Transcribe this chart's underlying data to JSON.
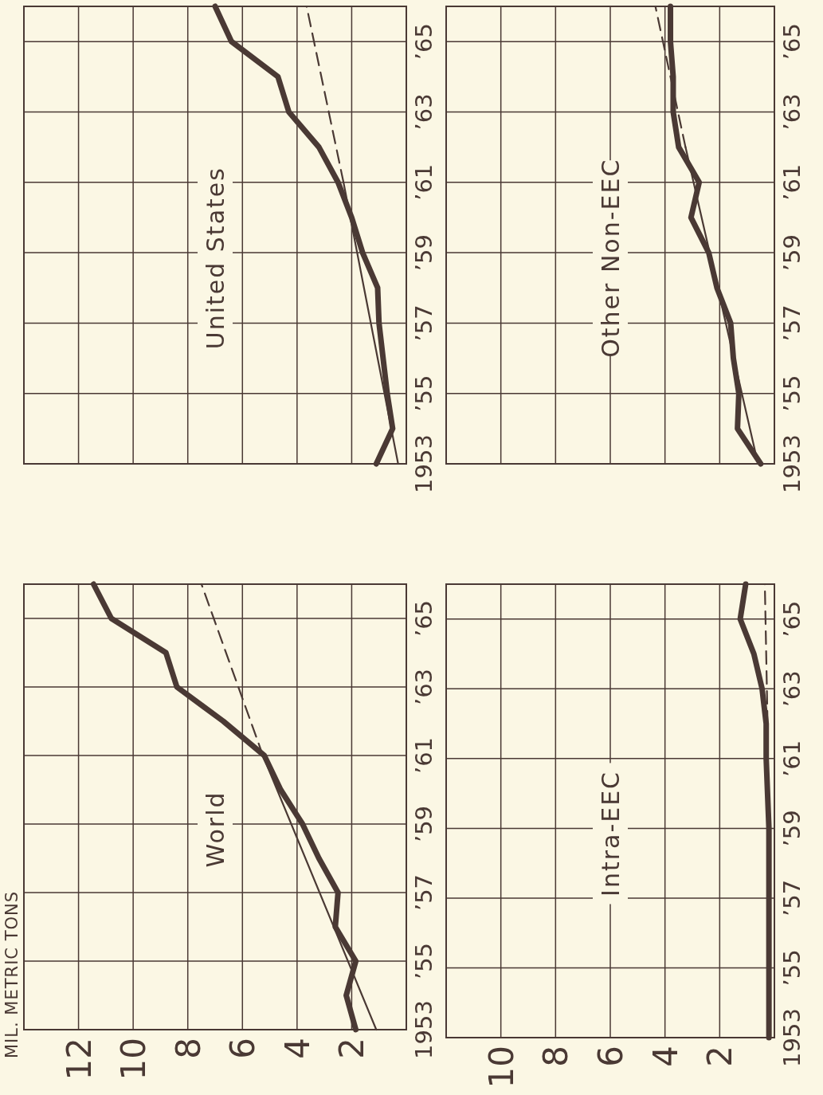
{
  "chart_data": [
    {
      "type": "line",
      "title": "World",
      "annotations": [
        "MIL. METRIC TONS"
      ],
      "xlim": [
        14,
        0
      ],
      "xticks": [
        12,
        10,
        8,
        6,
        4,
        2
      ],
      "ylim": [
        1953,
        1966
      ],
      "yticks": [
        {
          "value": 1953,
          "label": "1953"
        },
        {
          "value": 1955,
          "label": "’55"
        },
        {
          "value": 1957,
          "label": "’57"
        },
        {
          "value": 1959,
          "label": "’59"
        },
        {
          "value": 1961,
          "label": "’61"
        },
        {
          "value": 1963,
          "label": "’63"
        },
        {
          "value": 1965,
          "label": "’65"
        }
      ],
      "grid": true,
      "series": [
        {
          "color": "#4a3934",
          "line_style": "solid",
          "x": [
            1.85,
            2.2,
            1.85,
            2.6,
            2.5,
            3.2,
            3.8,
            4.6,
            5.2,
            6.7,
            8.4,
            8.8,
            10.8,
            11.45
          ],
          "values": [
            1953,
            1954,
            1955,
            1956,
            1957,
            1958,
            1959,
            1960,
            1961,
            1962,
            1963,
            1964,
            1965,
            1966
          ]
        },
        {
          "color": "#4a3934",
          "line_style": "solid",
          "x": [
            1.1,
            5.25
          ],
          "values": [
            1953,
            1961
          ]
        },
        {
          "color": "#4a3934",
          "line_style": "dashed",
          "x": [
            5.25,
            7.5
          ],
          "values": [
            1961,
            1966
          ]
        }
      ]
    },
    {
      "type": "line",
      "title": "United States",
      "xlim": [
        14,
        0
      ],
      "xticks": [
        12,
        10,
        8,
        6,
        4,
        2
      ],
      "ylim": [
        1953,
        1966
      ],
      "yticks": [
        {
          "value": 1953,
          "label": "1953"
        },
        {
          "value": 1955,
          "label": "’55"
        },
        {
          "value": 1957,
          "label": "’57"
        },
        {
          "value": 1959,
          "label": "’59"
        },
        {
          "value": 1961,
          "label": "’61"
        },
        {
          "value": 1963,
          "label": "’63"
        },
        {
          "value": 1965,
          "label": "’65"
        }
      ],
      "grid": true,
      "tick_labels": "y",
      "series": [
        {
          "color": "#4a3934",
          "line_style": "solid",
          "x": [
            1.1,
            0.5,
            0.7,
            0.85,
            1.0,
            1.05,
            1.6,
            2.0,
            2.5,
            3.2,
            4.3,
            4.7,
            6.4,
            7.0
          ],
          "values": [
            1953,
            1954,
            1955,
            1956,
            1957,
            1958,
            1959,
            1960,
            1961,
            1962,
            1963,
            1964,
            1965,
            1966
          ]
        },
        {
          "color": "#4a3934",
          "line_style": "solid",
          "x": [
            0.3,
            2.3
          ],
          "values": [
            1953,
            1961
          ]
        },
        {
          "color": "#4a3934",
          "line_style": "dashed",
          "x": [
            2.3,
            3.65
          ],
          "values": [
            1961,
            1966
          ]
        }
      ]
    },
    {
      "type": "line",
      "title": "Intra-EEC",
      "xlim": [
        12,
        0
      ],
      "xticks": [
        10,
        8,
        6,
        4,
        2
      ],
      "ylim": [
        1953,
        1966
      ],
      "yticks": [
        {
          "value": 1953,
          "label": "1953"
        },
        {
          "value": 1955,
          "label": "’55"
        },
        {
          "value": 1957,
          "label": "’57"
        },
        {
          "value": 1959,
          "label": "’59"
        },
        {
          "value": 1961,
          "label": "’61"
        },
        {
          "value": 1963,
          "label": "’63"
        },
        {
          "value": 1965,
          "label": "’65"
        }
      ],
      "grid": true,
      "series": [
        {
          "color": "#4a3934",
          "line_style": "solid",
          "x": [
            0.2,
            0.2,
            0.2,
            0.2,
            0.3,
            0.3,
            0.45,
            0.75,
            1.25,
            1.05
          ],
          "values": [
            1953,
            1955,
            1957,
            1959,
            1961,
            1962,
            1963,
            1964,
            1965,
            1966
          ]
        },
        {
          "color": "#4a3934",
          "line_style": "dashed",
          "x": [
            0.25,
            0.35
          ],
          "values": [
            1962,
            1966
          ]
        }
      ]
    },
    {
      "type": "line",
      "title": "Other Non-EEC",
      "xlim": [
        12,
        0
      ],
      "xticks": [
        10,
        8,
        6,
        4,
        2
      ],
      "ylim": [
        1953,
        1966
      ],
      "yticks": [
        {
          "value": 1953,
          "label": "1953"
        },
        {
          "value": 1955,
          "label": "’55"
        },
        {
          "value": 1957,
          "label": "’57"
        },
        {
          "value": 1959,
          "label": "’59"
        },
        {
          "value": 1961,
          "label": "’61"
        },
        {
          "value": 1963,
          "label": "’63"
        },
        {
          "value": 1965,
          "label": "’65"
        }
      ],
      "grid": true,
      "tick_labels": "y",
      "series": [
        {
          "color": "#4a3934",
          "line_style": "solid",
          "x": [
            0.5,
            1.35,
            1.3,
            1.5,
            1.6,
            2.1,
            2.4,
            3.05,
            2.75,
            3.5,
            3.7,
            3.7,
            3.8,
            3.8
          ],
          "values": [
            1953,
            1954,
            1955,
            1956,
            1957,
            1958,
            1959,
            1960,
            1961,
            1962,
            1963,
            1964,
            1965,
            1966
          ]
        },
        {
          "color": "#4a3934",
          "line_style": "solid",
          "x": [
            0.6,
            3.25
          ],
          "values": [
            1953,
            1962
          ]
        },
        {
          "color": "#4a3934",
          "line_style": "dashed",
          "x": [
            3.25,
            4.35
          ],
          "values": [
            1962,
            1966
          ]
        }
      ]
    }
  ]
}
